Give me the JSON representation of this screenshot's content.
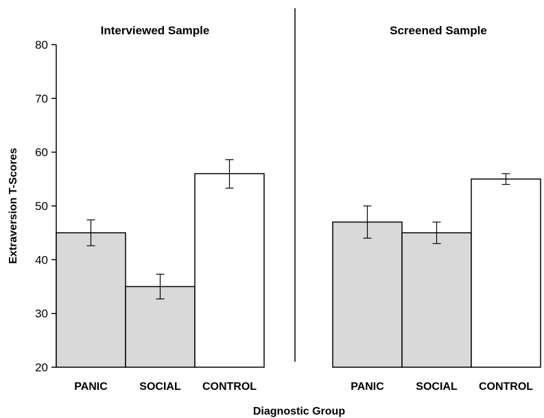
{
  "chart_data": {
    "type": "bar",
    "xlabel": "Diagnostic Group",
    "ylabel": "Extraversion T-Scores",
    "ylim": [
      20,
      80
    ],
    "yticks": [
      20,
      30,
      40,
      50,
      60,
      70,
      80
    ],
    "grid": false,
    "legend": "none",
    "panels": [
      {
        "title": "Interviewed Sample",
        "categories": [
          "PANIC",
          "SOCIAL",
          "CONTROL"
        ],
        "values": [
          45,
          35,
          56
        ],
        "error_low": [
          42.6,
          32.7,
          53.3
        ],
        "error_high": [
          47.4,
          37.3,
          58.6
        ],
        "fill_colors": [
          "#d9d9d9",
          "#d9d9d9",
          "#ffffff"
        ]
      },
      {
        "title": "Screened Sample",
        "categories": [
          "PANIC",
          "SOCIAL",
          "CONTROL"
        ],
        "values": [
          47,
          45,
          55
        ],
        "error_low": [
          44,
          43,
          54
        ],
        "error_high": [
          50,
          47,
          56
        ],
        "fill_colors": [
          "#d9d9d9",
          "#d9d9d9",
          "#ffffff"
        ]
      }
    ]
  },
  "colors": {
    "clinical_fill": "#d9d9d9",
    "control_fill": "#ffffff",
    "stroke": "#000000"
  }
}
